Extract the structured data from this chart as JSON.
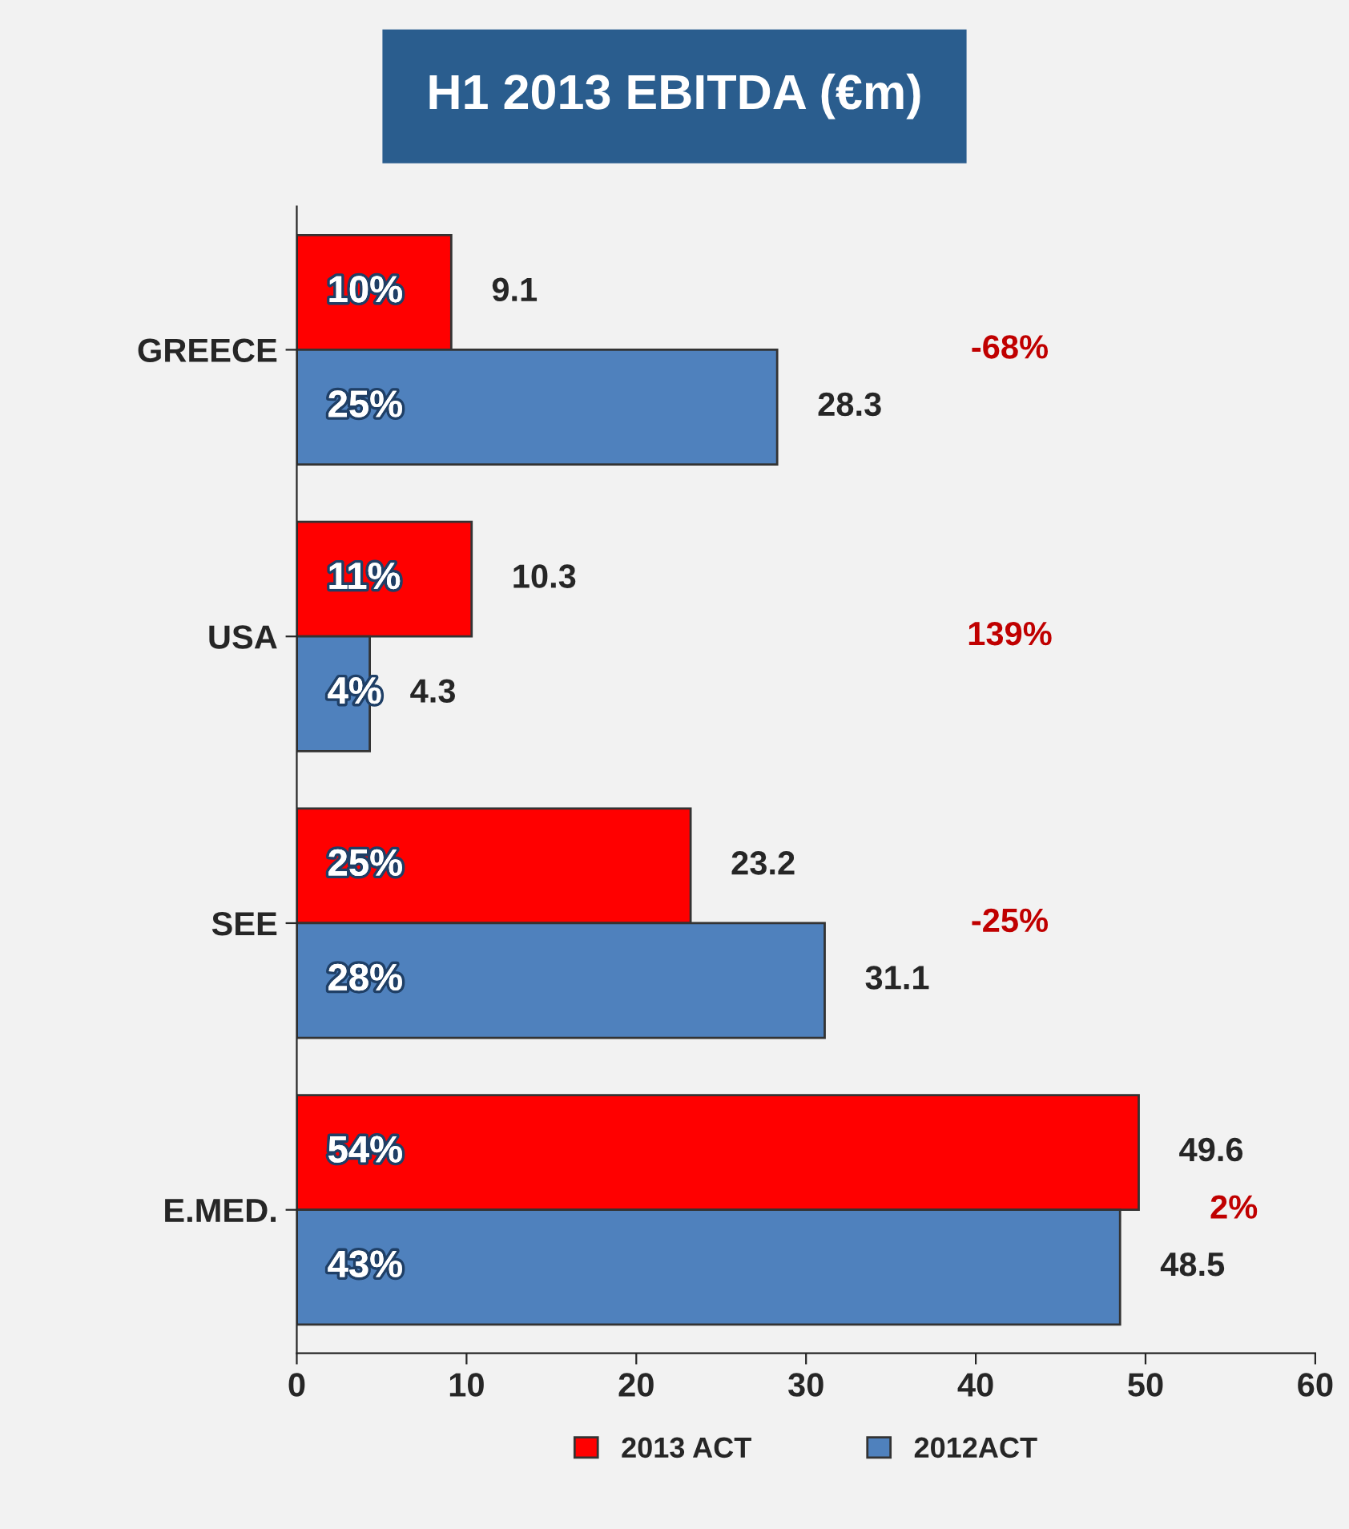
{
  "chart_data": {
    "type": "bar",
    "orientation": "horizontal",
    "title": "H1 2013 EBITDA (€m)",
    "categories": [
      "GREECE",
      "USA",
      "SEE",
      "E.MED."
    ],
    "series": [
      {
        "name": "2013 ACT",
        "color": "#ff0000",
        "values": [
          9.1,
          10.3,
          23.2,
          49.6
        ]
      },
      {
        "name": "2012ACT",
        "color": "#4f81bd",
        "values": [
          28.3,
          4.3,
          31.1,
          48.5
        ]
      }
    ],
    "xlim": [
      0,
      60
    ],
    "xticks": [
      0,
      10,
      20,
      30,
      40,
      50,
      60
    ],
    "data_labels": true,
    "grid": false,
    "legend": "bottom",
    "annotations": [
      "10%",
      "25%",
      "11%",
      "4%",
      "25%",
      "28%",
      "54%",
      "43%",
      "-68%",
      "139%",
      "-25%",
      "2%"
    ]
  }
}
